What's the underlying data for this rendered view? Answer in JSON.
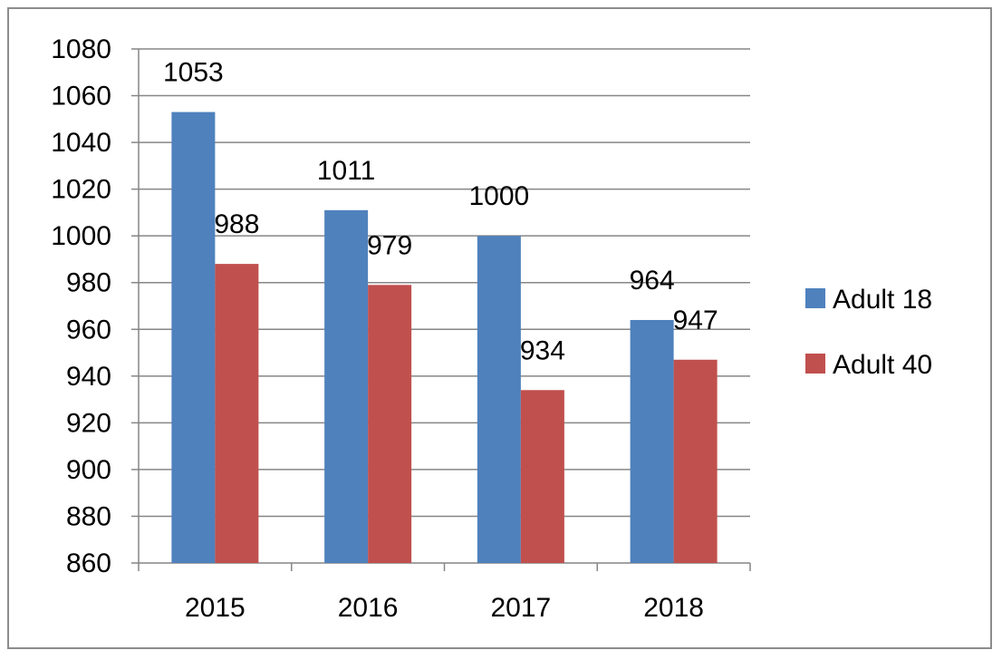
{
  "chart_data": {
    "type": "bar",
    "categories": [
      "2015",
      "2016",
      "2017",
      "2018"
    ],
    "series": [
      {
        "name": "Adult 18",
        "values": [
          1053,
          1011,
          1000,
          964
        ],
        "color": "#4f81bd"
      },
      {
        "name": "Adult 40",
        "values": [
          988,
          979,
          934,
          947
        ],
        "color": "#c0504d"
      }
    ],
    "title": "",
    "xlabel": "",
    "ylabel": "",
    "ylim": [
      860,
      1080
    ],
    "yticks": [
      860,
      880,
      900,
      920,
      940,
      960,
      980,
      1000,
      1020,
      1040,
      1060,
      1080
    ],
    "grid": true,
    "legend": "right"
  }
}
